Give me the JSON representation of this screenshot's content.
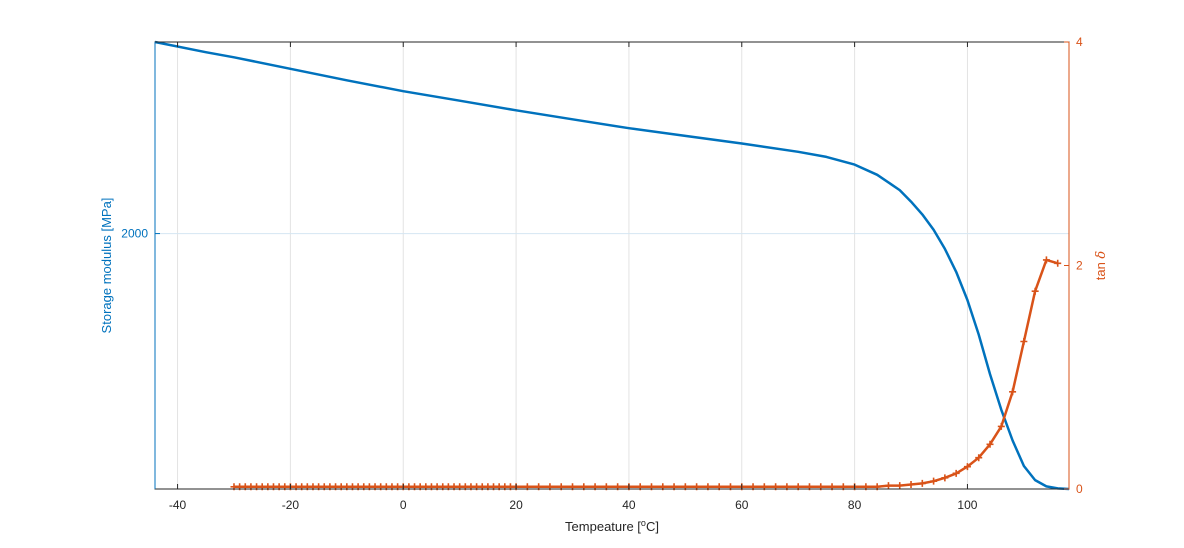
{
  "chart_data": {
    "type": "line",
    "xlabel": "Tempeature [",
    "xlabel_unit_sup": "o",
    "xlabel_unit": "C]",
    "ylabel_left": "Storage modulus [MPa]",
    "ylabel_right_prefix": "tan ",
    "ylabel_right_symbol": "δ",
    "xlim": [
      -44,
      118
    ],
    "ylim_left": [
      0,
      3500
    ],
    "ylim_right": [
      0,
      4
    ],
    "xticks": [
      -40,
      -20,
      0,
      20,
      40,
      60,
      80,
      100
    ],
    "xtick_labels": [
      "-40",
      "-20",
      "0",
      "20",
      "40",
      "60",
      "80",
      "100"
    ],
    "yticks_left": [
      2000
    ],
    "ytick_labels_left": [
      "2000"
    ],
    "yticks_right": [
      0,
      2,
      4
    ],
    "ytick_labels_right": [
      "0",
      "2",
      "4"
    ],
    "grid": true,
    "colors": {
      "left": "#0072BD",
      "right": "#D95319",
      "grid": "#e3e3e3",
      "axes": "#262626"
    },
    "series": [
      {
        "axis": "left",
        "color": "#0072BD",
        "marker": "none",
        "x": [
          -44,
          -35,
          -30,
          -20,
          -10,
          0,
          10,
          20,
          30,
          40,
          50,
          60,
          70,
          75,
          80,
          84,
          88,
          90,
          92,
          94,
          96,
          98,
          100,
          102,
          104,
          106,
          108,
          110,
          112,
          114,
          116,
          118
        ],
        "y": [
          3500,
          3420,
          3380,
          3290,
          3200,
          3115,
          3040,
          2965,
          2895,
          2825,
          2765,
          2705,
          2640,
          2600,
          2540,
          2460,
          2340,
          2250,
          2150,
          2030,
          1880,
          1700,
          1480,
          1210,
          900,
          620,
          380,
          180,
          70,
          20,
          5,
          0
        ]
      },
      {
        "axis": "right",
        "color": "#D95319",
        "marker": "+",
        "x": [
          -30,
          -29,
          -28,
          -27,
          -26,
          -25,
          -24,
          -23,
          -22,
          -21,
          -20,
          -19,
          -18,
          -17,
          -16,
          -15,
          -14,
          -13,
          -12,
          -11,
          -10,
          -9,
          -8,
          -7,
          -6,
          -5,
          -4,
          -3,
          -2,
          -1,
          0,
          1,
          2,
          3,
          4,
          5,
          6,
          7,
          8,
          9,
          10,
          11,
          12,
          13,
          14,
          15,
          16,
          17,
          18,
          19,
          20,
          22,
          24,
          26,
          28,
          30,
          32,
          34,
          36,
          38,
          40,
          42,
          44,
          46,
          48,
          50,
          52,
          54,
          56,
          58,
          60,
          62,
          64,
          66,
          68,
          70,
          72,
          74,
          76,
          78,
          80,
          82,
          84,
          86,
          88,
          90,
          92,
          94,
          96,
          98,
          100,
          102,
          104,
          106,
          108,
          110,
          112,
          114,
          116
        ],
        "y": [
          0.02,
          0.02,
          0.02,
          0.02,
          0.02,
          0.02,
          0.02,
          0.02,
          0.02,
          0.02,
          0.02,
          0.02,
          0.02,
          0.02,
          0.02,
          0.02,
          0.02,
          0.02,
          0.02,
          0.02,
          0.02,
          0.02,
          0.02,
          0.02,
          0.02,
          0.02,
          0.02,
          0.02,
          0.02,
          0.02,
          0.02,
          0.02,
          0.02,
          0.02,
          0.02,
          0.02,
          0.02,
          0.02,
          0.02,
          0.02,
          0.02,
          0.02,
          0.02,
          0.02,
          0.02,
          0.02,
          0.02,
          0.02,
          0.02,
          0.02,
          0.02,
          0.02,
          0.02,
          0.02,
          0.02,
          0.02,
          0.02,
          0.02,
          0.02,
          0.02,
          0.02,
          0.02,
          0.02,
          0.02,
          0.02,
          0.02,
          0.02,
          0.02,
          0.02,
          0.02,
          0.02,
          0.02,
          0.02,
          0.02,
          0.02,
          0.02,
          0.02,
          0.02,
          0.02,
          0.02,
          0.02,
          0.02,
          0.02,
          0.03,
          0.03,
          0.04,
          0.05,
          0.07,
          0.1,
          0.14,
          0.2,
          0.28,
          0.4,
          0.56,
          0.87,
          1.32,
          1.77,
          2.05,
          2.02
        ]
      }
    ]
  }
}
